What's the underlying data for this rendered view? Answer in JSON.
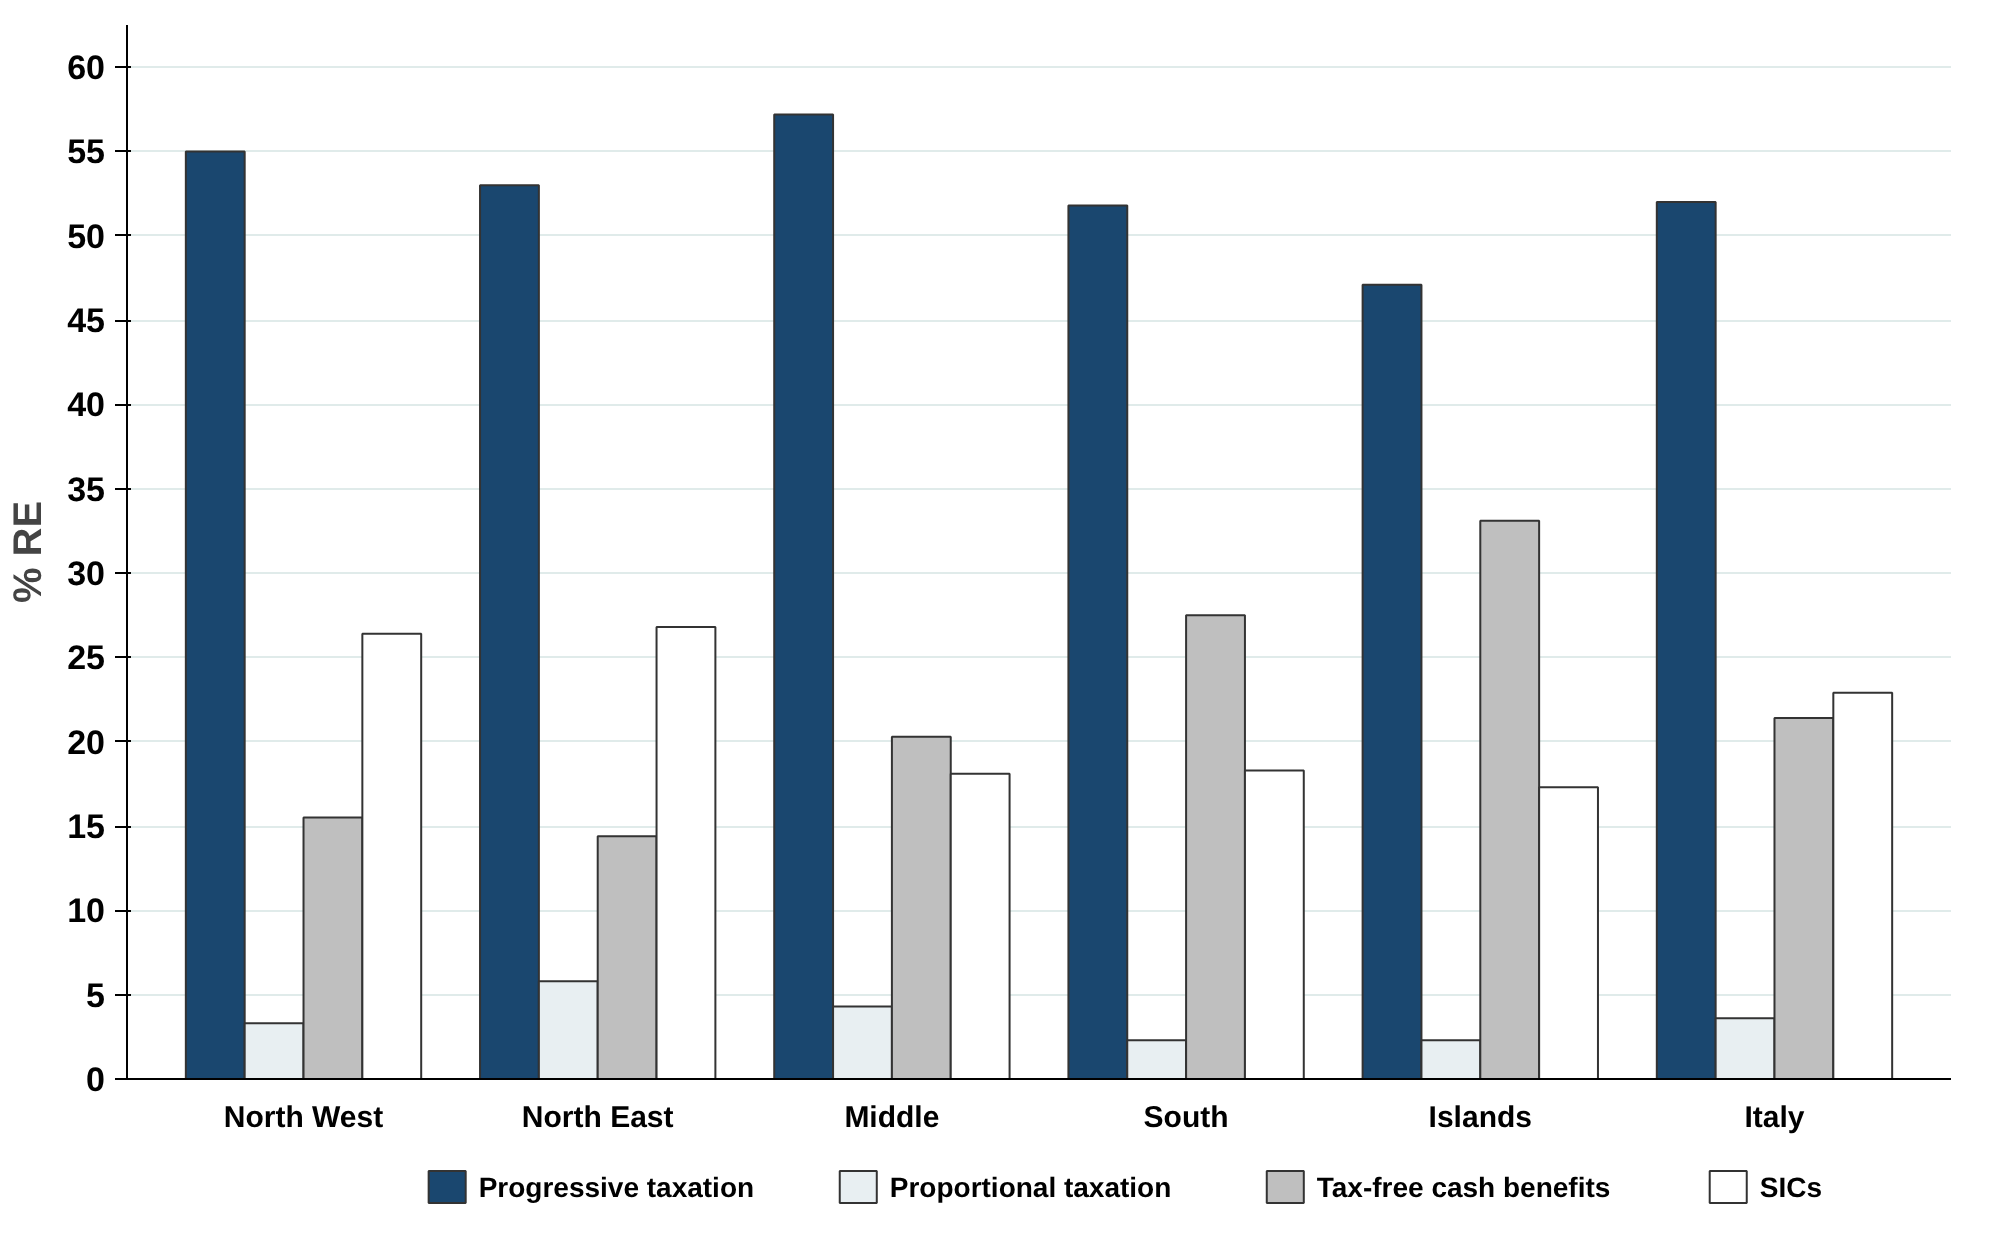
{
  "chart_data": {
    "type": "bar",
    "ylabel": "% RE",
    "categories": [
      "North West",
      "North East",
      "Middle",
      "South",
      "Islands",
      "Italy"
    ],
    "series": [
      {
        "name": "Progressive taxation",
        "color": "#1a476f",
        "values": [
          55,
          53,
          57.2,
          51.8,
          47.1,
          52
        ]
      },
      {
        "name": "Proportional taxation",
        "color": "#e8eff2",
        "values": [
          3.3,
          5.8,
          4.3,
          2.3,
          2.3,
          3.6
        ]
      },
      {
        "name": "Tax-free cash benefits",
        "color": "#bfbfbf",
        "values": [
          15.5,
          14.4,
          20.3,
          27.5,
          33.1,
          21.4
        ]
      },
      {
        "name": "SICs",
        "color": "#ffffff",
        "values": [
          26.4,
          26.8,
          18.1,
          18.3,
          17.3,
          22.9
        ]
      }
    ],
    "ylim": [
      0,
      62.5
    ],
    "yticks": [
      0,
      5,
      10,
      15,
      20,
      25,
      30,
      35,
      40,
      45,
      50,
      55,
      60
    ],
    "grid": "y",
    "legend": "bottom"
  }
}
